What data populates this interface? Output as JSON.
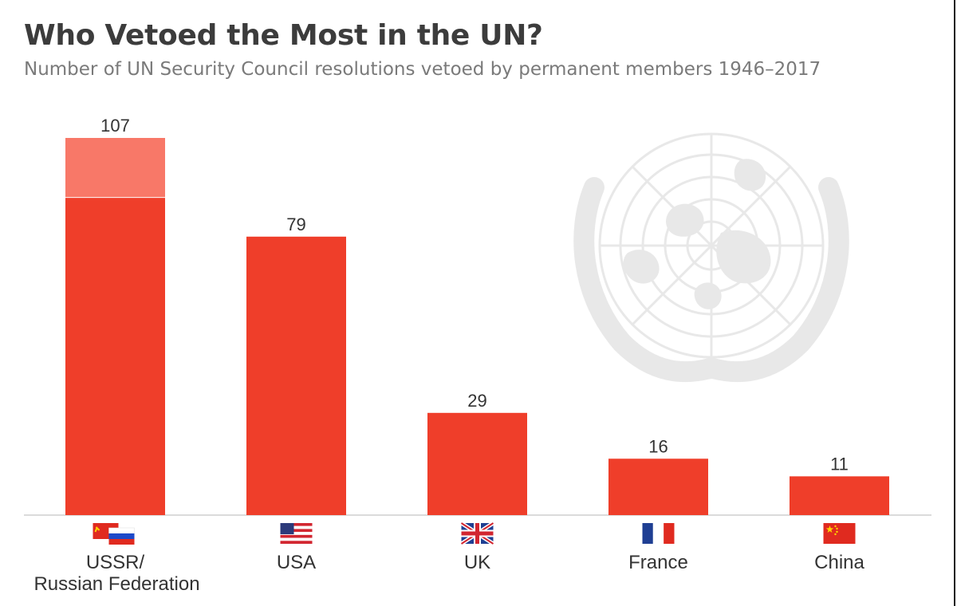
{
  "title": "Who Vetoed the Most in the UN?",
  "subtitle": "Number of UN Security Council resolutions vetoed by permanent members 1946–2017",
  "colors": {
    "bar": "#ef3e2a",
    "bar_light": "#f87868",
    "emblem": "#e8e8e8",
    "axis": "#cfcfcf",
    "value_text": "#333333",
    "label_text": "#333333"
  },
  "chart_data": {
    "type": "bar",
    "categories": [
      "USSR/\nRussian Federation",
      "USA",
      "UK",
      "France",
      "China"
    ],
    "values": [
      107,
      79,
      29,
      16,
      11
    ],
    "stack_split": {
      "category_index": 0,
      "lower_value": 90,
      "upper_value": 17
    },
    "data_labels": [
      "107",
      "79",
      "29",
      "16",
      "11"
    ],
    "category_icons": [
      [
        "ussr-flag-icon",
        "russia-flag-icon"
      ],
      [
        "usa-flag-icon"
      ],
      [
        "uk-flag-icon"
      ],
      [
        "france-flag-icon"
      ],
      [
        "china-flag-icon"
      ]
    ],
    "ylim": [
      0,
      107
    ],
    "grid": false,
    "legend": "none"
  }
}
